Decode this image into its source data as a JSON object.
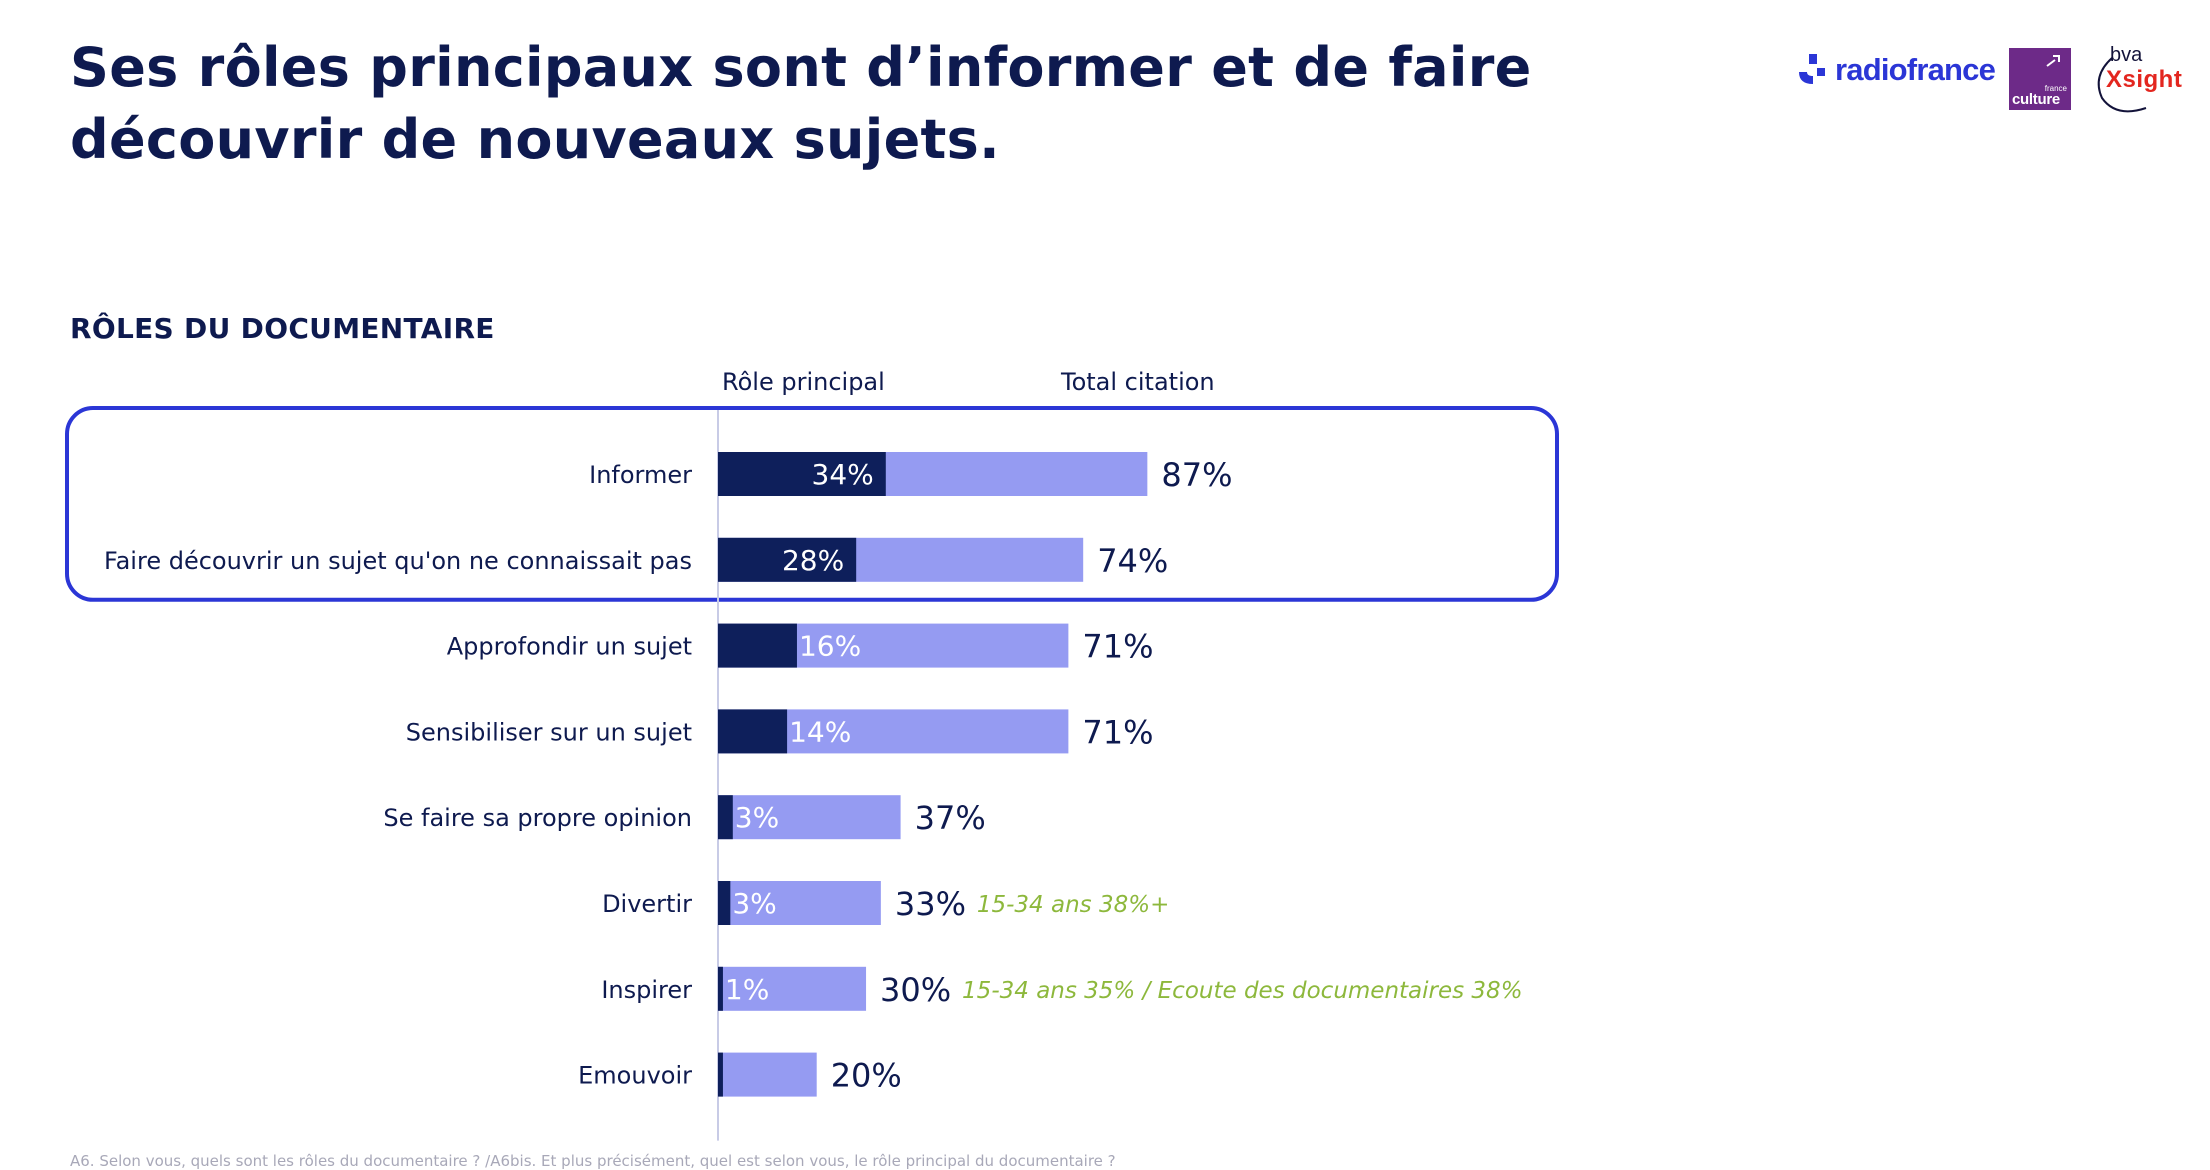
{
  "title": "Ses rôles principaux sont d’informer et de faire découvrir de nouveaux sujets.",
  "logos": {
    "radiofrance": "radiofrance",
    "franceculture_small": "france",
    "franceculture": "culture",
    "bva": "bva",
    "xsight": "Xsight"
  },
  "section_title": "RÔLES DU DOCUMENTAIRE",
  "footnote": "A6. Selon vous, quels sont les rôles du documentaire ? /A6bis. Et plus précisément, quel est selon vous, le rôle principal du documentaire ?",
  "colors": {
    "principal": "#0e1f5b",
    "total": "#959bf2",
    "highlight_border": "#2b36d6",
    "note": "#8db83c",
    "text": "#0e1a4f"
  },
  "chart_data": {
    "type": "bar",
    "orientation": "horizontal",
    "title": "RÔLES DU DOCUMENTAIRE",
    "categories": [
      "Informer",
      "Faire découvrir un sujet qu'on ne connaissait pas",
      "Approfondir un sujet",
      "Sensibiliser sur un sujet",
      "Se faire sa propre opinion",
      "Divertir",
      "Inspirer",
      "Emouvoir"
    ],
    "series": [
      {
        "name": "Rôle principal",
        "values": [
          34,
          28,
          16,
          14,
          3,
          3,
          1,
          null
        ],
        "labels": [
          "34%",
          "28%",
          "16%",
          "14%",
          "3%",
          "3%",
          "1%",
          ""
        ],
        "drawn_values": [
          34,
          28,
          16,
          14,
          3,
          2.5,
          1,
          1
        ]
      },
      {
        "name": "Total citation",
        "values": [
          87,
          74,
          71,
          71,
          37,
          33,
          30,
          20
        ],
        "labels": [
          "87%",
          "74%",
          "71%",
          "71%",
          "37%",
          "33%",
          "30%",
          "20%"
        ]
      }
    ],
    "annotations": [
      "",
      "",
      "",
      "",
      "",
      "15-34 ans 38%+",
      "15-34 ans 35% / Ecoute des documentaires 38%",
      ""
    ],
    "highlighted_categories": [
      "Informer",
      "Faire découvrir un sujet qu'on ne connaissait pas"
    ],
    "xlim": [
      0,
      100
    ],
    "grid": false,
    "legend_position": "top"
  }
}
